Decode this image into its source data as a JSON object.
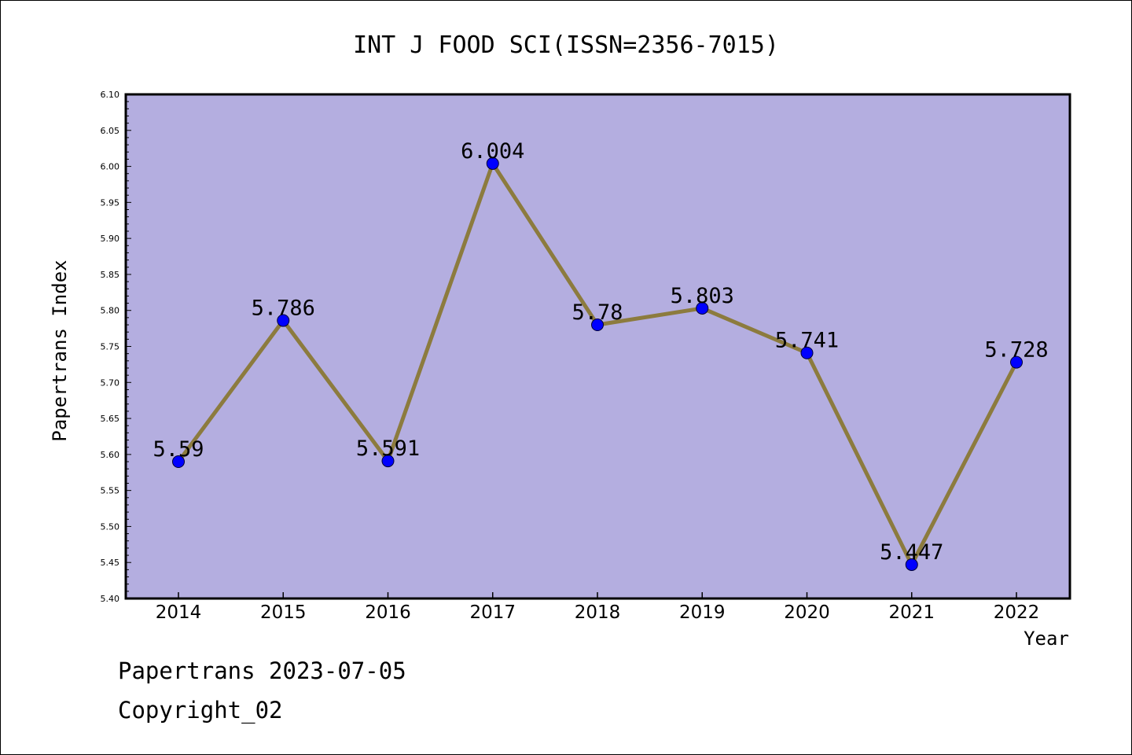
{
  "chart_data": {
    "type": "line",
    "title": "INT J FOOD SCI(ISSN=2356-7015)",
    "xlabel": "Year",
    "ylabel": "Papertrans Index",
    "categories": [
      "2014",
      "2015",
      "2016",
      "2017",
      "2018",
      "2019",
      "2020",
      "2021",
      "2022"
    ],
    "series": [
      {
        "values": [
          5.59,
          5.786,
          5.591,
          6.004,
          5.78,
          5.803,
          5.741,
          5.447,
          5.728
        ]
      }
    ],
    "data_labels": [
      "5.59",
      "5.786",
      "5.591",
      "6.004",
      "5.78",
      "5.803",
      "5.741",
      "5.447",
      "5.728"
    ],
    "ylim": [
      5.4,
      6.1
    ],
    "yticks": [
      "5.40",
      "5.45",
      "5.50",
      "5.55",
      "5.60",
      "5.65",
      "5.70",
      "5.75",
      "5.80",
      "5.85",
      "5.90",
      "5.95",
      "6.00",
      "6.05",
      "6.10"
    ],
    "grid": false,
    "legend": "none",
    "colors": {
      "plot_background": "#b4aee0",
      "line": "#8c7b3e",
      "marker": "#0000ff",
      "axis": "#000000"
    }
  },
  "footer": {
    "line1": "Papertrans 2023-07-05",
    "line2": "Copyright_02"
  }
}
